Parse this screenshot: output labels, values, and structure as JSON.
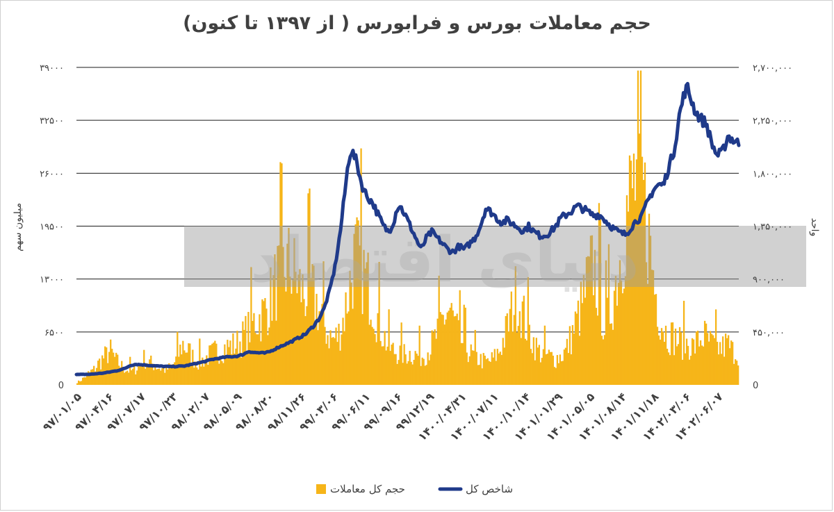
{
  "chart_data": {
    "type": "bar+line",
    "title": "حجم معاملات بورس و فرابورس ( از ۱۳۹۷ تا کنون)",
    "ylabel_left": "میلیون سهم",
    "ylabel_right": "واحد",
    "left_axis": {
      "min": 0,
      "max": 39000,
      "ticks": [
        0,
        6500,
        13000,
        19500,
        26000,
        32500,
        39000
      ],
      "tick_labels": [
        "0",
        "۶۵۰۰",
        "۱۳۰۰۰",
        "۱۹۵۰۰",
        "۲۶۰۰۰",
        "۳۲۵۰۰",
        "۳۹۰۰۰"
      ]
    },
    "right_axis": {
      "min": 0,
      "max": 2700000,
      "ticks": [
        0,
        450000,
        900000,
        1350000,
        1800000,
        2250000,
        2700000
      ],
      "tick_labels": [
        "0",
        "۴۵۰,۰۰۰",
        "۹۰۰,۰۰۰",
        "۱,۳۵۰,۰۰۰",
        "۱,۸۰۰,۰۰۰",
        "۲,۲۵۰,۰۰۰",
        "۲,۷۰۰,۰۰۰"
      ]
    },
    "x_tick_labels": [
      "۹۷/۰۱/۰۵",
      "۹۷/۰۴/۱۶",
      "۹۷/۰۷/۱۷",
      "۹۷/۱۰/۲۳",
      "۹۸/۰۲/۰۷",
      "۹۸/۰۵/۰۹",
      "۹۸/۰۸/۲۰",
      "۹۸/۱۱/۲۶",
      "۹۹/۰۳/۰۶",
      "۹۹/۰۶/۱۱",
      "۹۹/۰۹/۱۶",
      "۹۹/۱۲/۱۹",
      "۱۴۰۰/۰۴/۳۱",
      "۱۴۰۰/۰۷/۱۱",
      "۱۴۰۰/۱۰/۱۴",
      "۱۴۰۱/۰۱/۲۹",
      "۱۴۰۱/۰۵/۰۵",
      "۱۴۰۱/۰۸/۱۴",
      "۱۴۰۱/۱۱/۱۸",
      "۱۴۰۲/۰۳/۰۶",
      "۱۴۰۲/۰۶/۰۷"
    ],
    "series": [
      {
        "name": "حجم کل معاملات",
        "type": "bar",
        "axis": "left",
        "color": "#f6b519",
        "approx_profile": [
          [
            0,
            300
          ],
          [
            2,
            800
          ],
          [
            4,
            1500
          ],
          [
            6,
            2000
          ],
          [
            8,
            3000
          ],
          [
            10,
            3800
          ],
          [
            12,
            4500
          ],
          [
            14,
            3200
          ],
          [
            16,
            2500
          ],
          [
            18,
            2000
          ],
          [
            20,
            1800
          ],
          [
            22,
            2500
          ],
          [
            24,
            3500
          ],
          [
            26,
            3000
          ],
          [
            28,
            2600
          ],
          [
            30,
            2200
          ],
          [
            32,
            2000
          ],
          [
            34,
            2400
          ],
          [
            36,
            3500
          ],
          [
            38,
            5500
          ],
          [
            40,
            4500
          ],
          [
            42,
            3500
          ],
          [
            44,
            3000
          ],
          [
            46,
            3500
          ],
          [
            48,
            4000
          ],
          [
            50,
            4500
          ],
          [
            52,
            4800
          ],
          [
            54,
            5000
          ],
          [
            56,
            5200
          ],
          [
            58,
            5500
          ],
          [
            60,
            6500
          ],
          [
            62,
            7500
          ],
          [
            64,
            8500
          ],
          [
            66,
            9000
          ],
          [
            68,
            10000
          ],
          [
            70,
            12000
          ],
          [
            72,
            14000
          ],
          [
            74,
            15000
          ],
          [
            76,
            16000
          ],
          [
            78,
            15000
          ],
          [
            80,
            13000
          ],
          [
            82,
            12000
          ],
          [
            84,
            13000
          ],
          [
            86,
            11000
          ],
          [
            88,
            9000
          ],
          [
            90,
            7000
          ],
          [
            92,
            6000
          ],
          [
            94,
            6500
          ],
          [
            96,
            9000
          ],
          [
            98,
            13000
          ],
          [
            100,
            17000
          ],
          [
            102,
            16000
          ],
          [
            104,
            14000
          ],
          [
            106,
            12000
          ],
          [
            108,
            9000
          ],
          [
            110,
            7000
          ],
          [
            112,
            5000
          ],
          [
            114,
            4500
          ],
          [
            116,
            4200
          ],
          [
            118,
            4000
          ],
          [
            120,
            4200
          ],
          [
            122,
            4000
          ],
          [
            124,
            3800
          ],
          [
            126,
            4500
          ],
          [
            128,
            5500
          ],
          [
            130,
            7000
          ],
          [
            132,
            9000
          ],
          [
            134,
            10000
          ],
          [
            136,
            8000
          ],
          [
            138,
            6000
          ],
          [
            140,
            5000
          ],
          [
            142,
            4000
          ],
          [
            144,
            3500
          ],
          [
            146,
            3200
          ],
          [
            148,
            3000
          ],
          [
            150,
            3500
          ],
          [
            152,
            4500
          ],
          [
            154,
            6500
          ],
          [
            156,
            9000
          ],
          [
            158,
            12000
          ],
          [
            160,
            10000
          ],
          [
            162,
            7500
          ],
          [
            164,
            6000
          ],
          [
            166,
            4500
          ],
          [
            168,
            4000
          ],
          [
            170,
            3800
          ],
          [
            172,
            3500
          ],
          [
            174,
            3800
          ],
          [
            176,
            4500
          ],
          [
            178,
            6500
          ],
          [
            180,
            8500
          ],
          [
            182,
            11000
          ],
          [
            184,
            14000
          ],
          [
            186,
            16000
          ],
          [
            188,
            12000
          ],
          [
            190,
            8000
          ],
          [
            192,
            10000
          ],
          [
            194,
            14000
          ],
          [
            196,
            18000
          ],
          [
            198,
            23000
          ],
          [
            200,
            26000
          ],
          [
            202,
            28000
          ],
          [
            204,
            25000
          ],
          [
            206,
            19000
          ],
          [
            208,
            13000
          ],
          [
            210,
            9000
          ],
          [
            212,
            7000
          ],
          [
            214,
            6500
          ],
          [
            216,
            6000
          ],
          [
            218,
            5500
          ],
          [
            220,
            5500
          ],
          [
            222,
            5000
          ],
          [
            224,
            6000
          ],
          [
            226,
            6500
          ],
          [
            228,
            5500
          ],
          [
            230,
            5000
          ],
          [
            232,
            4800
          ],
          [
            234,
            5500
          ],
          [
            236,
            4500
          ],
          [
            238,
            4200
          ]
        ]
      },
      {
        "name": "شاخص کل",
        "type": "line",
        "axis": "right",
        "color": "#1f3a8a",
        "approx_profile": [
          [
            0,
            88000
          ],
          [
            5,
            90000
          ],
          [
            10,
            100000
          ],
          [
            15,
            120000
          ],
          [
            18,
            140000
          ],
          [
            20,
            165000
          ],
          [
            22,
            175000
          ],
          [
            25,
            170000
          ],
          [
            30,
            160000
          ],
          [
            35,
            155000
          ],
          [
            40,
            160000
          ],
          [
            45,
            185000
          ],
          [
            48,
            200000
          ],
          [
            50,
            215000
          ],
          [
            55,
            235000
          ],
          [
            60,
            245000
          ],
          [
            62,
            260000
          ],
          [
            64,
            285000
          ],
          [
            66,
            275000
          ],
          [
            70,
            270000
          ],
          [
            72,
            285000
          ],
          [
            75,
            320000
          ],
          [
            80,
            370000
          ],
          [
            85,
            430000
          ],
          [
            88,
            500000
          ],
          [
            90,
            560000
          ],
          [
            92,
            650000
          ],
          [
            94,
            800000
          ],
          [
            96,
            1000000
          ],
          [
            98,
            1300000
          ],
          [
            100,
            1700000
          ],
          [
            101,
            1900000
          ],
          [
            102,
            2000000
          ],
          [
            104,
            1900000
          ],
          [
            106,
            1700000
          ],
          [
            108,
            1600000
          ],
          [
            110,
            1550000
          ],
          [
            112,
            1450000
          ],
          [
            114,
            1350000
          ],
          [
            116,
            1300000
          ],
          [
            118,
            1400000
          ],
          [
            119,
            1500000
          ],
          [
            120,
            1530000
          ],
          [
            122,
            1450000
          ],
          [
            124,
            1350000
          ],
          [
            126,
            1250000
          ],
          [
            128,
            1150000
          ],
          [
            130,
            1250000
          ],
          [
            132,
            1300000
          ],
          [
            134,
            1250000
          ],
          [
            136,
            1200000
          ],
          [
            138,
            1150000
          ],
          [
            140,
            1130000
          ],
          [
            142,
            1180000
          ],
          [
            144,
            1150000
          ],
          [
            146,
            1200000
          ],
          [
            148,
            1250000
          ],
          [
            150,
            1350000
          ],
          [
            152,
            1500000
          ],
          [
            154,
            1470000
          ],
          [
            156,
            1420000
          ],
          [
            158,
            1380000
          ],
          [
            160,
            1400000
          ],
          [
            162,
            1370000
          ],
          [
            164,
            1340000
          ],
          [
            166,
            1310000
          ],
          [
            168,
            1350000
          ],
          [
            170,
            1300000
          ],
          [
            172,
            1270000
          ],
          [
            174,
            1270000
          ],
          [
            176,
            1300000
          ],
          [
            178,
            1350000
          ],
          [
            180,
            1420000
          ],
          [
            182,
            1450000
          ],
          [
            184,
            1480000
          ],
          [
            186,
            1520000
          ],
          [
            188,
            1500000
          ],
          [
            190,
            1470000
          ],
          [
            192,
            1440000
          ],
          [
            194,
            1450000
          ],
          [
            196,
            1410000
          ],
          [
            198,
            1360000
          ],
          [
            200,
            1320000
          ],
          [
            202,
            1290000
          ],
          [
            204,
            1280000
          ],
          [
            206,
            1340000
          ],
          [
            208,
            1400000
          ],
          [
            210,
            1430000
          ],
          [
            212,
            1550000
          ],
          [
            214,
            1650000
          ],
          [
            216,
            1700000
          ],
          [
            218,
            1700000
          ],
          [
            220,
            1850000
          ],
          [
            222,
            2000000
          ],
          [
            224,
            2300000
          ],
          [
            226,
            2500000
          ],
          [
            227,
            2520000
          ],
          [
            228,
            2450000
          ],
          [
            230,
            2320000
          ],
          [
            232,
            2260000
          ],
          [
            234,
            2220000
          ],
          [
            236,
            2050000
          ],
          [
            238,
            1950000
          ],
          [
            240,
            1980000
          ],
          [
            242,
            2120000
          ],
          [
            244,
            2080000
          ],
          [
            246,
            2050000
          ]
        ]
      }
    ],
    "legend": [
      {
        "label": "شاخص کل",
        "color": "#1f3a8a",
        "kind": "line"
      },
      {
        "label": "حجم کل معاملات",
        "color": "#f6b519",
        "kind": "box"
      }
    ],
    "legend_position": "bottom-center",
    "grid": true,
    "watermark_text": "دنیای اقتصاد"
  }
}
